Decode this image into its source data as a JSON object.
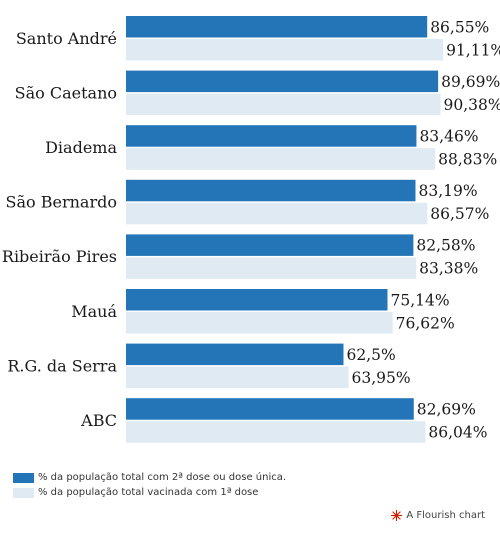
{
  "chart_data": {
    "type": "bar",
    "orientation": "horizontal",
    "categories": [
      "Santo André",
      "São Caetano",
      "Diadema",
      "São Bernardo",
      "Ribeirão Pires",
      "Mauá",
      "R.G. da Serra",
      "ABC"
    ],
    "series": [
      {
        "name": "% da população total com 2ª dose ou dose única.",
        "color": "#2474b8",
        "values": [
          86.55,
          89.69,
          83.46,
          83.19,
          82.58,
          75.14,
          62.5,
          82.69
        ],
        "labels": [
          "86,55%",
          "89,69%",
          "83,46%",
          "83,19%",
          "82,58%",
          "75,14%",
          "62,5%",
          "82,69%"
        ]
      },
      {
        "name": "% da população total vacinada com 1ª dose",
        "color": "#dfeaf2",
        "values": [
          91.11,
          90.38,
          88.83,
          86.57,
          83.38,
          76.62,
          63.95,
          86.04
        ],
        "labels": [
          "91,11%",
          "90,38%",
          "88,83%",
          "86,57%",
          "83,38%",
          "76,62%",
          "63,95%",
          "86,04%"
        ]
      }
    ],
    "xlim": [
      0,
      100
    ],
    "grid": false,
    "legend_position": "bottom-left"
  },
  "credit": {
    "text": "A Flourish chart",
    "icon": "flourish-logo-icon",
    "color": "#cc2200"
  }
}
